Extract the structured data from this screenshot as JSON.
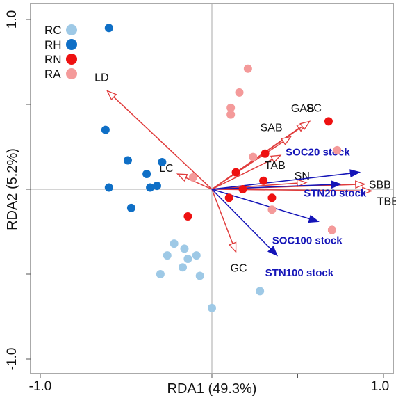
{
  "chart_data": {
    "type": "scatter",
    "subtype": "rda-biplot",
    "xlabel": "RDA1 (49.3%)",
    "ylabel": "RDA2 (5.2%)",
    "xlim": [
      -1.05,
      1.05
    ],
    "ylim": [
      -1.05,
      1.05
    ],
    "xtick_labels": [
      {
        "value": -1.0,
        "label": "-1.0"
      },
      {
        "value": 1.0,
        "label": "1.0"
      }
    ],
    "ytick_labels": [
      {
        "value": 1.0,
        "label": "1.0"
      },
      {
        "value": -1.0,
        "label": "-1.0"
      }
    ],
    "minor_ticks": [
      -1.0,
      -0.5,
      0.0,
      0.5,
      1.0
    ],
    "zero_lines": true,
    "grid": false,
    "legend": {
      "placement": "top-left",
      "entries": [
        {
          "label": "RC",
          "color": "#9ec9e6"
        },
        {
          "label": "RH",
          "color": "#0f6fc6"
        },
        {
          "label": "RN",
          "color": "#ee1111"
        },
        {
          "label": "RA",
          "color": "#f49a9a"
        }
      ]
    },
    "series": [
      {
        "name": "RC",
        "color": "#9ec9e6",
        "points": [
          [
            -0.22,
            -0.32
          ],
          [
            -0.26,
            -0.39
          ],
          [
            -0.16,
            -0.35
          ],
          [
            -0.09,
            -0.39
          ],
          [
            -0.14,
            -0.41
          ],
          [
            -0.17,
            -0.46
          ],
          [
            -0.3,
            -0.5
          ],
          [
            -0.07,
            -0.51
          ],
          [
            0.28,
            -0.6
          ],
          [
            0.0,
            -0.7
          ]
        ]
      },
      {
        "name": "RH",
        "color": "#0f6fc6",
        "points": [
          [
            -0.6,
            0.95
          ],
          [
            -0.62,
            0.35
          ],
          [
            -0.49,
            0.17
          ],
          [
            -0.29,
            0.16
          ],
          [
            -0.38,
            0.09
          ],
          [
            -0.6,
            0.01
          ],
          [
            -0.36,
            0.01
          ],
          [
            -0.32,
            0.02
          ],
          [
            -0.47,
            -0.11
          ]
        ]
      },
      {
        "name": "RN",
        "color": "#ee1111",
        "points": [
          [
            0.68,
            0.4
          ],
          [
            0.31,
            0.21
          ],
          [
            0.14,
            0.1
          ],
          [
            0.3,
            0.05
          ],
          [
            0.18,
            0.0
          ],
          [
            0.1,
            -0.05
          ],
          [
            0.35,
            -0.05
          ],
          [
            -0.14,
            -0.16
          ],
          [
            0.7,
            -0.24
          ]
        ]
      },
      {
        "name": "RA",
        "color": "#f49a9a",
        "points": [
          [
            0.21,
            0.71
          ],
          [
            0.16,
            0.57
          ],
          [
            0.11,
            0.48
          ],
          [
            0.11,
            0.44
          ],
          [
            0.24,
            0.19
          ],
          [
            0.73,
            0.23
          ],
          [
            -0.11,
            0.07
          ],
          [
            0.35,
            -0.12
          ],
          [
            0.7,
            -0.24
          ]
        ]
      }
    ],
    "vectors": [
      {
        "label": "LD",
        "x": -0.61,
        "y": 0.58,
        "color": "#e03c3c",
        "head": "open",
        "font": "sans"
      },
      {
        "label": "LC",
        "x": -0.2,
        "y": 0.09,
        "color": "#e03c3c",
        "head": "open",
        "font": "sans"
      },
      {
        "label": "GAB",
        "x": 0.55,
        "y": 0.39,
        "color": "#e03c3c",
        "head": "open",
        "font": "sans"
      },
      {
        "label": "SC",
        "x": 0.57,
        "y": 0.4,
        "color": "#e03c3c",
        "head": "open",
        "font": "sans"
      },
      {
        "label": "SAB",
        "x": 0.46,
        "y": 0.31,
        "color": "#e03c3c",
        "head": "open",
        "font": "sans"
      },
      {
        "label": "TAB",
        "x": 0.4,
        "y": 0.2,
        "color": "#e03c3c",
        "head": "open",
        "font": "sans"
      },
      {
        "label": "SN",
        "x": 0.55,
        "y": 0.04,
        "color": "#e03c3c",
        "head": "open",
        "font": "sans"
      },
      {
        "label": "SBB",
        "x": 0.89,
        "y": 0.03,
        "color": "#e03c3c",
        "head": "open",
        "font": "sans"
      },
      {
        "label": "TBB",
        "x": 0.93,
        "y": -0.01,
        "color": "#e03c3c",
        "head": "open",
        "font": "sans"
      },
      {
        "label": "GC",
        "x": 0.14,
        "y": -0.37,
        "color": "#e03c3c",
        "head": "open",
        "font": "sans"
      },
      {
        "label": "SOC20 stock",
        "x": 0.86,
        "y": 0.1,
        "color": "#1515b8",
        "head": "solid",
        "font": "serif"
      },
      {
        "label": "STN20 stock",
        "x": 0.75,
        "y": 0.03,
        "color": "#1515b8",
        "head": "solid",
        "font": "serif"
      },
      {
        "label": "SOC100 stock",
        "x": 0.62,
        "y": -0.19,
        "color": "#1515b8",
        "head": "solid",
        "font": "serif"
      },
      {
        "label": "STN100 stock",
        "x": 0.38,
        "y": -0.39,
        "color": "#1515b8",
        "head": "solid",
        "font": "serif"
      }
    ]
  }
}
